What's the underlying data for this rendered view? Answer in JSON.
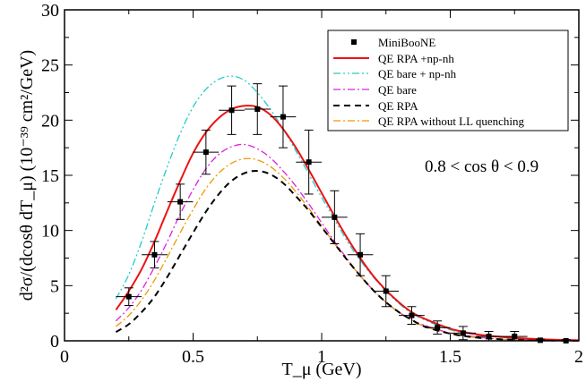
{
  "chart_data": {
    "type": "line",
    "xlabel": "T_μ (GeV)",
    "ylabel": "d²σ/(dcosθ dT_μ) (10⁻³⁹ cm²/GeV)",
    "xlim": [
      0,
      2
    ],
    "ylim": [
      0,
      30
    ],
    "x_ticks": [
      0,
      0.5,
      1,
      1.5,
      2
    ],
    "x_tick_labels": [
      "0",
      "0.5",
      "1",
      "1.5",
      "2"
    ],
    "y_ticks": [
      0,
      5,
      10,
      15,
      20,
      25,
      30
    ],
    "y_tick_labels": [
      "0",
      "5",
      "10",
      "15",
      "20",
      "25",
      "30"
    ],
    "annotation": "0.8 < cos θ < 0.9",
    "legend_position": "top-right",
    "data_series": {
      "name": "MiniBooNE",
      "x": [
        0.25,
        0.35,
        0.45,
        0.55,
        0.65,
        0.75,
        0.85,
        0.95,
        1.05,
        1.15,
        1.25,
        1.35,
        1.45,
        1.55,
        1.65,
        1.75,
        1.85,
        1.95
      ],
      "y": [
        4.0,
        7.8,
        12.6,
        17.1,
        20.9,
        21.0,
        20.3,
        16.2,
        11.2,
        7.8,
        4.5,
        2.3,
        1.2,
        0.7,
        0.4,
        0.4,
        0.05,
        0.0
      ],
      "yerr": [
        0.8,
        1.2,
        1.6,
        2.0,
        2.2,
        2.3,
        2.8,
        2.9,
        2.4,
        1.9,
        1.4,
        0.8,
        0.6,
        0.6,
        0.45,
        0.45,
        0.1,
        0.1
      ],
      "xerr": 0.05
    },
    "series": [
      {
        "name": "QE RPA +np-nh",
        "color": "#ee1111",
        "dash": "solid",
        "x": [
          0.2,
          0.25,
          0.3,
          0.35,
          0.4,
          0.45,
          0.5,
          0.55,
          0.6,
          0.65,
          0.7,
          0.75,
          0.8,
          0.85,
          0.9,
          0.95,
          1.0,
          1.05,
          1.1,
          1.15,
          1.2,
          1.25,
          1.3,
          1.35,
          1.4,
          1.5,
          1.6,
          1.7,
          1.8,
          1.9,
          2.0
        ],
        "y": [
          2.8,
          4.5,
          6.5,
          9.0,
          11.8,
          14.5,
          17.0,
          18.9,
          20.2,
          21.0,
          21.3,
          21.2,
          20.5,
          19.2,
          17.5,
          15.5,
          13.4,
          11.3,
          9.3,
          7.5,
          5.9,
          4.6,
          3.5,
          2.6,
          2.0,
          1.1,
          0.6,
          0.35,
          0.2,
          0.1,
          0.05
        ]
      },
      {
        "name": "QE bare + np-nh",
        "color": "#22cccc",
        "dash": "8,3,2,3,2,3",
        "x": [
          0.2,
          0.25,
          0.3,
          0.35,
          0.4,
          0.45,
          0.5,
          0.55,
          0.6,
          0.65,
          0.7,
          0.75,
          0.8,
          0.85,
          0.9,
          0.95,
          1.0,
          1.05,
          1.1,
          1.15,
          1.2,
          1.25,
          1.3,
          1.35,
          1.4,
          1.5,
          1.6,
          1.7,
          1.8,
          1.9,
          2.0
        ],
        "y": [
          3.8,
          6.0,
          9.0,
          12.5,
          15.8,
          18.8,
          21.2,
          22.8,
          23.7,
          24.0,
          23.6,
          22.5,
          21.0,
          19.2,
          17.2,
          15.1,
          13.0,
          11.0,
          9.0,
          7.3,
          5.8,
          4.5,
          3.4,
          2.5,
          1.9,
          1.0,
          0.55,
          0.3,
          0.15,
          0.08,
          0.04
        ]
      },
      {
        "name": "QE bare",
        "color": "#dd22dd",
        "dash": "8,3,2,3",
        "x": [
          0.2,
          0.25,
          0.3,
          0.35,
          0.4,
          0.45,
          0.5,
          0.55,
          0.6,
          0.65,
          0.7,
          0.75,
          0.8,
          0.85,
          0.9,
          0.95,
          1.0,
          1.05,
          1.1,
          1.15,
          1.2,
          1.25,
          1.3,
          1.35,
          1.4,
          1.5,
          1.6,
          1.7,
          1.8,
          1.9,
          2.0
        ],
        "y": [
          1.8,
          3.0,
          4.6,
          6.7,
          9.0,
          11.5,
          13.7,
          15.6,
          16.9,
          17.6,
          17.8,
          17.4,
          16.6,
          15.4,
          14.0,
          12.4,
          10.7,
          9.0,
          7.4,
          5.9,
          4.6,
          3.5,
          2.6,
          1.9,
          1.4,
          0.7,
          0.35,
          0.15,
          0.07,
          0.03,
          0.01
        ]
      },
      {
        "name": "QE RPA",
        "color": "#000000",
        "dash": "7,5",
        "x": [
          0.2,
          0.25,
          0.3,
          0.35,
          0.4,
          0.45,
          0.5,
          0.55,
          0.6,
          0.65,
          0.7,
          0.75,
          0.8,
          0.85,
          0.9,
          0.95,
          1.0,
          1.05,
          1.1,
          1.15,
          1.2,
          1.25,
          1.3,
          1.35,
          1.4,
          1.5,
          1.6,
          1.7,
          1.8,
          1.9,
          2.0
        ],
        "y": [
          0.8,
          1.5,
          2.6,
          4.0,
          5.8,
          7.8,
          9.8,
          11.7,
          13.3,
          14.5,
          15.2,
          15.4,
          15.1,
          14.3,
          13.1,
          11.8,
          10.3,
          8.8,
          7.3,
          5.9,
          4.6,
          3.5,
          2.6,
          1.9,
          1.3,
          0.65,
          0.3,
          0.13,
          0.06,
          0.03,
          0.01
        ]
      },
      {
        "name": "QE RPA without LL quenching",
        "color": "#ee9900",
        "dash": "8,3,2,3",
        "x": [
          0.2,
          0.25,
          0.3,
          0.35,
          0.4,
          0.45,
          0.5,
          0.55,
          0.6,
          0.65,
          0.7,
          0.75,
          0.8,
          0.85,
          0.9,
          0.95,
          1.0,
          1.05,
          1.1,
          1.15,
          1.2,
          1.25,
          1.3,
          1.35,
          1.4,
          1.5,
          1.6,
          1.7,
          1.8,
          1.9,
          2.0
        ],
        "y": [
          1.3,
          2.3,
          3.7,
          5.5,
          7.6,
          9.8,
          11.9,
          13.8,
          15.2,
          16.1,
          16.5,
          16.4,
          15.8,
          14.8,
          13.5,
          12.0,
          10.4,
          8.8,
          7.3,
          5.9,
          4.6,
          3.5,
          2.6,
          1.9,
          1.3,
          0.65,
          0.3,
          0.13,
          0.06,
          0.03,
          0.01
        ]
      }
    ]
  }
}
